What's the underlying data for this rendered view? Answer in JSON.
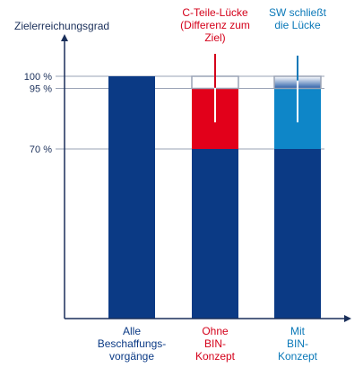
{
  "chart_data": {
    "type": "bar",
    "stacked": true,
    "ylabel": "Zielerreichungsgrad",
    "ylim": [
      0,
      100
    ],
    "yticks": [
      {
        "value": 100,
        "label": "100 %"
      },
      {
        "value": 95,
        "label": "95 %"
      },
      {
        "value": 70,
        "label": "70 %"
      }
    ],
    "grid": "horizontal lines at ticks",
    "categories": [
      {
        "lines": [
          "Alle",
          "Beschaffungs-",
          "vorgänge"
        ],
        "color": "#0b3a85"
      },
      {
        "lines": [
          "Ohne",
          "BIN-",
          "Konzept"
        ],
        "color": "#d4001a"
      },
      {
        "lines": [
          "Mit",
          "BIN-",
          "Konzept"
        ],
        "color": "#0a78b8"
      }
    ],
    "bars": [
      {
        "segments": [
          {
            "from": 0,
            "to": 100,
            "fill": "#0b3a85"
          }
        ]
      },
      {
        "segments": [
          {
            "from": 0,
            "to": 70,
            "fill": "#0b3a85"
          },
          {
            "from": 70,
            "to": 95,
            "fill": "#e2001a"
          },
          {
            "from": 95,
            "to": 100,
            "fill": "none"
          }
        ]
      },
      {
        "segments": [
          {
            "from": 0,
            "to": 70,
            "fill": "#0b3a85"
          },
          {
            "from": 70,
            "to": 95,
            "fill": "#0e86c8"
          },
          {
            "from": 95,
            "to": 100,
            "fill": "gradient"
          }
        ]
      }
    ],
    "annotations": [
      {
        "bar": 1,
        "lines": [
          "C-Teile-Lücke",
          "(Differenz zum",
          "Ziel)"
        ],
        "color": "#d4001a",
        "range": [
          81,
          96
        ]
      },
      {
        "bar": 2,
        "lines": [
          "SW schließt",
          "die Lücke"
        ],
        "color": "#0a78b8",
        "range": [
          81,
          99
        ]
      }
    ],
    "colors": {
      "axis": "#1a2f5a",
      "grid": "#9aa3b5",
      "navy": "#0b3a85",
      "red": "#e2001a",
      "blue": "#0e86c8",
      "outline": "#9aa3b5"
    }
  }
}
